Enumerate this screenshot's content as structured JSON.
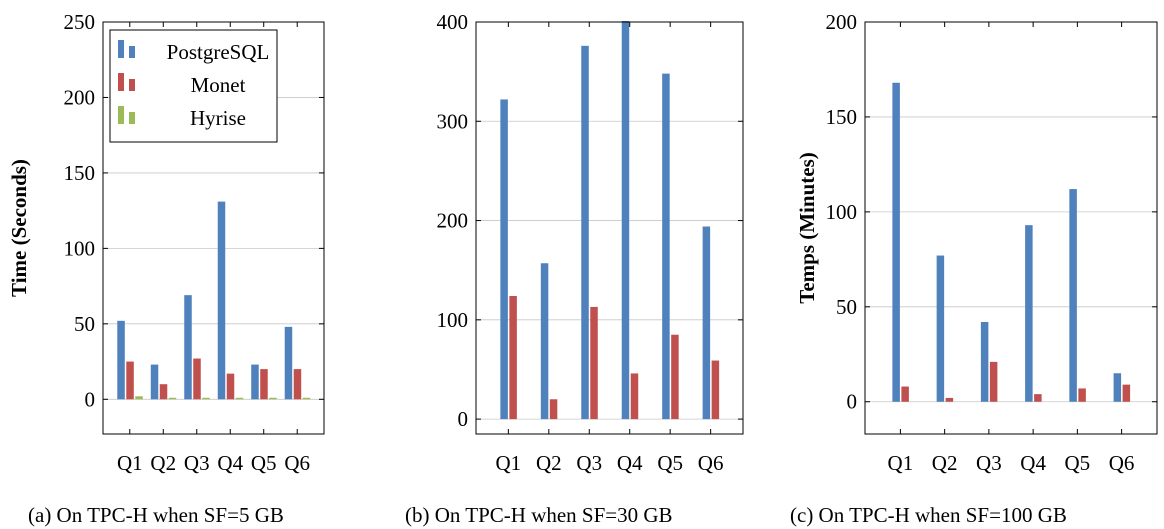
{
  "chart_data": [
    {
      "type": "bar",
      "caption": "(a) On TPC-H when SF=5 GB",
      "ylabel": "Time (Seconds)",
      "categories": [
        "Q1",
        "Q2",
        "Q3",
        "Q4",
        "Q5",
        "Q6"
      ],
      "ylim": [
        -23,
        250
      ],
      "yticks": [
        0,
        50,
        100,
        150,
        200,
        250
      ],
      "grid": true,
      "legend": "top-left",
      "series": [
        {
          "name": "PostgreSQL",
          "color": "#4f81bd",
          "values": [
            52,
            23,
            69,
            131,
            23,
            48
          ]
        },
        {
          "name": "Monet",
          "color": "#c0504d",
          "values": [
            25,
            10,
            27,
            17,
            20,
            20
          ]
        },
        {
          "name": "Hyrise",
          "color": "#9bbb59",
          "values": [
            2,
            1,
            1,
            1,
            1,
            1
          ]
        }
      ]
    },
    {
      "type": "bar",
      "caption": "(b) On TPC-H when SF=30 GB",
      "ylabel": "",
      "categories": [
        "Q1",
        "Q2",
        "Q3",
        "Q4",
        "Q5",
        "Q6"
      ],
      "ylim": [
        -15,
        400
      ],
      "yticks": [
        0,
        100,
        200,
        300,
        400
      ],
      "grid": true,
      "series": [
        {
          "name": "PostgreSQL",
          "color": "#4f81bd",
          "values": [
            322,
            157,
            376,
            401,
            348,
            194
          ]
        },
        {
          "name": "Monet",
          "color": "#c0504d",
          "values": [
            124,
            20,
            113,
            46,
            85,
            59
          ]
        }
      ]
    },
    {
      "type": "bar",
      "caption": "(c) On TPC-H when SF=100 GB",
      "ylabel": "Temps (Minutes)",
      "categories": [
        "Q1",
        "Q2",
        "Q3",
        "Q4",
        "Q5",
        "Q6"
      ],
      "ylim": [
        -17,
        200
      ],
      "yticks": [
        0,
        50,
        100,
        150,
        200
      ],
      "grid": true,
      "series": [
        {
          "name": "PostgreSQL",
          "color": "#4f81bd",
          "values": [
            168,
            77,
            42,
            93,
            112,
            15
          ]
        },
        {
          "name": "Monet",
          "color": "#c0504d",
          "values": [
            8,
            2,
            21,
            4,
            7,
            9
          ]
        }
      ]
    }
  ]
}
